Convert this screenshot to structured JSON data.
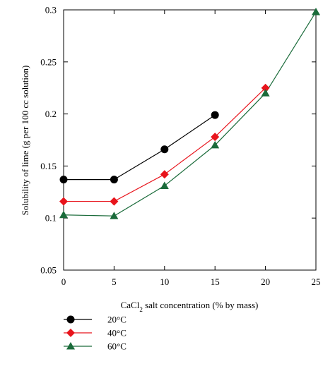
{
  "chart_data": {
    "type": "line",
    "xlabel_parts": [
      "CaCl",
      "2",
      " salt concentration (% by mass)"
    ],
    "ylabel": "Solubility of lime (g per 100 cc solution)",
    "xlim": [
      0,
      25
    ],
    "ylim": [
      0.05,
      0.3
    ],
    "xticks": [
      0,
      5,
      10,
      15,
      20,
      25
    ],
    "xtick_labels": [
      "0",
      "5",
      "10",
      "15",
      "20",
      "25"
    ],
    "yticks": [
      0.05,
      0.1,
      0.15,
      0.2,
      0.25,
      0.3
    ],
    "ytick_labels": [
      "0.05",
      "0.1",
      "0.15",
      "0.2",
      "0.25",
      "0.3"
    ],
    "grid": false,
    "legend_position": "bottom-left-below",
    "series": [
      {
        "name": "20°C",
        "marker": "circle",
        "color": "#000000",
        "x": [
          0,
          5,
          10,
          15
        ],
        "y": [
          0.137,
          0.137,
          0.166,
          0.199
        ]
      },
      {
        "name": "40°C",
        "marker": "diamond",
        "color": "#e8141c",
        "x": [
          0,
          5,
          10,
          15,
          20
        ],
        "y": [
          0.116,
          0.116,
          0.142,
          0.178,
          0.225
        ]
      },
      {
        "name": "60°C",
        "marker": "triangle",
        "color": "#1a6b3a",
        "x": [
          0,
          5,
          10,
          15,
          20,
          25
        ],
        "y": [
          0.103,
          0.102,
          0.131,
          0.17,
          0.22,
          0.298
        ]
      }
    ]
  }
}
